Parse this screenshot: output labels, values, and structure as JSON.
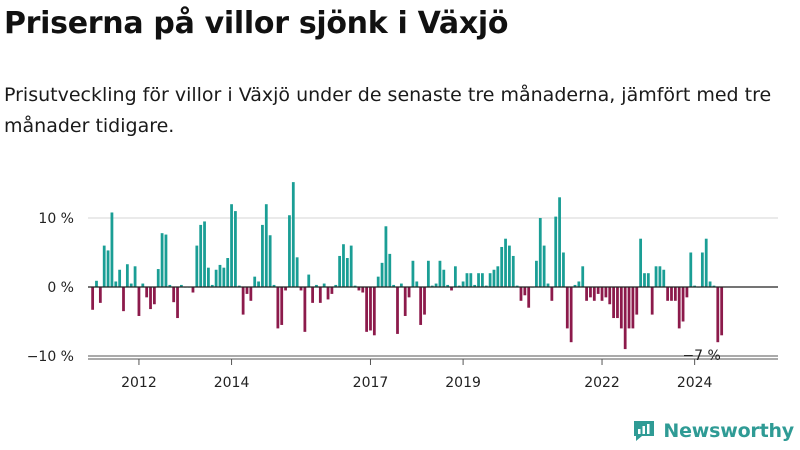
{
  "title": "Priserna på villor sjönk i Växjö",
  "subtitle": "Prisutveckling för villor i Växjö under de senaste tre månaderna, jämfört med tre månader tidigare.",
  "brand": {
    "name": "Newsworthy",
    "icon": "newsworthy-logo-icon"
  },
  "colors": {
    "positive": "#1a9e95",
    "negative": "#8c1a4b",
    "grid": "#dddddd",
    "zero": "#222222"
  },
  "chart_data": {
    "type": "bar",
    "title": "Priserna på villor sjönk i Växjö",
    "xlabel": "",
    "ylabel": "",
    "ylim": [
      -10,
      15
    ],
    "grid": true,
    "x_range": [
      2010.9,
      2025.8
    ],
    "y_ticks": [
      {
        "value": 10,
        "label": "10 %"
      },
      {
        "value": 0,
        "label": "0 %"
      },
      {
        "value": -10,
        "label": "−10 %"
      }
    ],
    "x_ticks": [
      {
        "value": 2012,
        "label": "2012"
      },
      {
        "value": 2014,
        "label": "2014"
      },
      {
        "value": 2017,
        "label": "2017"
      },
      {
        "value": 2019,
        "label": "2019"
      },
      {
        "value": 2022,
        "label": "2022"
      },
      {
        "value": 2024,
        "label": "2024"
      }
    ],
    "start": 2011.0,
    "step": 0.083333,
    "values": [
      -3.3,
      0.9,
      -2.3,
      6.0,
      5.3,
      10.8,
      0.8,
      2.5,
      -3.5,
      3.3,
      0.5,
      3.0,
      -4.2,
      0.5,
      -1.5,
      -3.2,
      -2.5,
      2.6,
      7.8,
      7.6,
      0.3,
      -2.2,
      -4.5,
      0.3,
      0.0,
      0.0,
      -0.8,
      6.0,
      9.0,
      9.5,
      2.8,
      0.3,
      2.5,
      3.2,
      2.8,
      4.2,
      12.0,
      11.0,
      0.2,
      -4.0,
      -1.0,
      -2.0,
      1.5,
      0.8,
      9.0,
      12.0,
      7.5,
      0.3,
      -6.0,
      -5.5,
      -0.5,
      10.4,
      15.2,
      4.3,
      -0.5,
      -6.5,
      1.8,
      -2.3,
      0.3,
      -2.3,
      0.5,
      -1.8,
      -1.0,
      0.3,
      4.5,
      6.2,
      4.2,
      6.0,
      0.2,
      -0.5,
      -0.8,
      -6.5,
      -6.3,
      -7.0,
      1.5,
      3.5,
      8.8,
      4.8,
      0.3,
      -6.8,
      0.5,
      -4.2,
      -1.5,
      3.8,
      0.8,
      -5.5,
      -4.0,
      3.8,
      0.2,
      0.5,
      3.8,
      2.5,
      0.3,
      -0.5,
      3.0,
      0.2,
      0.8,
      2.0,
      2.0,
      0.3,
      2.0,
      2.0,
      0.2,
      2.0,
      2.5,
      3.0,
      5.8,
      7.0,
      6.0,
      4.5,
      0.2,
      -2.0,
      -1.2,
      -3.0,
      0.0,
      3.8,
      10.0,
      6.0,
      0.5,
      -2.0,
      10.2,
      13.0,
      5.0,
      -6.0,
      -8.0,
      0.3,
      0.8,
      3.0,
      -2.0,
      -1.5,
      -2.0,
      -1.0,
      -2.0,
      -1.5,
      -2.5,
      -4.5,
      -4.5,
      -6.0,
      -9.0,
      -6.0,
      -6.0,
      -4.0,
      7.0,
      2.0,
      2.0,
      -4.0,
      3.0,
      3.0,
      2.5,
      -2.0,
      -2.0,
      -2.0,
      -6.0,
      -5.0,
      -1.5,
      5.0,
      0.2,
      0.0,
      5.0,
      7.0,
      0.8,
      0.2,
      -8.0,
      -7.0
    ],
    "annotation": {
      "text": "−7 %",
      "value": -7
    }
  }
}
